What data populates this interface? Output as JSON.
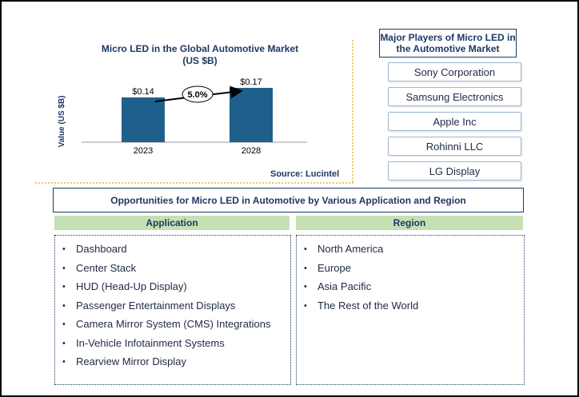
{
  "chart": {
    "title_line1": "Micro LED in the Global Automotive Market",
    "title_line2": "(US $B)",
    "source": "Source: Lucintel"
  },
  "chart_data": {
    "type": "bar",
    "categories": [
      "2023",
      "2028"
    ],
    "values": [
      0.14,
      0.17
    ],
    "value_labels": [
      "$0.14",
      "$0.17"
    ],
    "ylabel": "Value (US $B)",
    "cagr_label": "5.0%",
    "bar_color": "#1f5f8b"
  },
  "players": {
    "title": "Major Players of Micro LED in the Automotive Market",
    "items": [
      "Sony Corporation",
      "Samsung Electronics",
      "Apple Inc",
      "Rohinni LLC",
      "LG Display"
    ]
  },
  "opportunities": {
    "title": "Opportunities for Micro LED in Automotive by Various Application and Region",
    "application_header": "Application",
    "region_header": "Region",
    "applications": [
      "Dashboard",
      "Center Stack",
      "HUD (Head-Up Display)",
      "Passenger Entertainment Displays",
      "Camera Mirror System (CMS) Integrations",
      "In-Vehicle Infotainment Systems",
      "Rearview Mirror Display"
    ],
    "regions": [
      "North America",
      "Europe",
      "Asia Pacific",
      "The Rest of the World"
    ],
    "bullet": "•"
  },
  "colors": {
    "navy": "#1f3864",
    "header_green": "#c6e0b4",
    "divider": "#f0c866"
  }
}
